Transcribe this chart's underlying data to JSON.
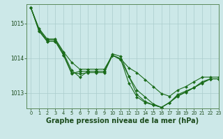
{
  "background_color": "#cce8e8",
  "grid_color": "#aacccc",
  "line_color": "#1a6b1a",
  "marker_color": "#1a6b1a",
  "xlabel": "Graphe pression niveau de la mer (hPa)",
  "xlabel_fontsize": 7,
  "xlim": [
    -0.5,
    23
  ],
  "ylim": [
    1012.55,
    1015.55
  ],
  "yticks": [
    1013,
    1014,
    1015
  ],
  "xticks": [
    0,
    1,
    2,
    3,
    4,
    5,
    6,
    7,
    8,
    9,
    10,
    11,
    12,
    13,
    14,
    15,
    16,
    17,
    18,
    19,
    20,
    21,
    22,
    23
  ],
  "series": [
    [
      1015.45,
      1014.85,
      1014.55,
      1014.55,
      1014.18,
      1013.88,
      1013.68,
      1013.68,
      1013.68,
      1013.68,
      1014.08,
      1013.98,
      1013.72,
      1013.58,
      1013.38,
      1013.18,
      1012.98,
      1012.9,
      1013.08,
      1013.18,
      1013.32,
      1013.45,
      1013.45,
      1013.45
    ],
    [
      1015.45,
      1014.82,
      1014.52,
      1014.52,
      1014.14,
      1013.65,
      1013.45,
      1013.62,
      1013.62,
      1013.62,
      1014.12,
      1014.05,
      1013.48,
      1012.95,
      1012.75,
      1012.65,
      1012.58,
      1012.72,
      1012.92,
      1013.02,
      1013.15,
      1013.32,
      1013.4,
      1013.4
    ],
    [
      1015.45,
      1014.78,
      1014.48,
      1014.48,
      1014.08,
      1013.55,
      1013.62,
      1013.62,
      1013.62,
      1013.62,
      1014.08,
      1013.98,
      1013.28,
      1012.88,
      1012.72,
      1012.65,
      1012.58,
      1012.72,
      1012.9,
      1013.02,
      1013.15,
      1013.28,
      1013.4,
      1013.4
    ],
    [
      1015.45,
      1014.78,
      1014.48,
      1014.48,
      1014.1,
      1013.58,
      1013.55,
      1013.58,
      1013.58,
      1013.58,
      1014.08,
      1013.95,
      1013.48,
      1013.08,
      1012.88,
      1012.68,
      1012.58,
      1012.72,
      1012.95,
      1013.05,
      1013.15,
      1013.28,
      1013.4,
      1013.4
    ]
  ]
}
